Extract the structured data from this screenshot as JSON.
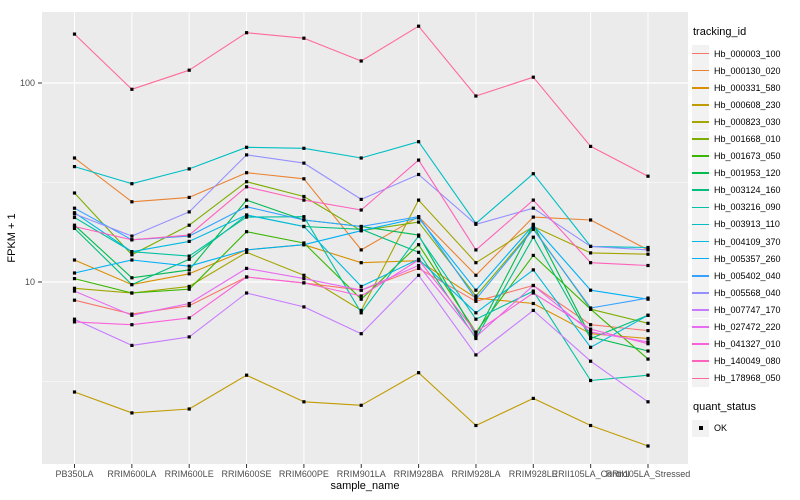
{
  "chart_data": {
    "type": "line",
    "title": "",
    "xlabel": "sample_name",
    "ylabel": "FPKM + 1",
    "y_scale": "log10",
    "y_ticks": [
      100,
      10
    ],
    "y_tick_labels": [
      "100",
      "10"
    ],
    "y_minor_ticks": [
      31.623,
      3.1623
    ],
    "ylim": [
      1.02,
      240
    ],
    "grid": "on",
    "legend_position": "right",
    "legend": {
      "color_title": "tracking_id",
      "shape_title": "quant_status",
      "shape_label": "OK"
    },
    "colors": {
      "panel_bg": "#EBEBEB",
      "grid": "#FFFFFF",
      "tick_label": "#4D4D4D",
      "axis_title": "#000000",
      "point": "#000000",
      "legend_key_bg": "#F2F2F2"
    },
    "categories": [
      "PB350LA",
      "RRIM600LA",
      "RRIM600LE",
      "RRIM600SE",
      "RRIM600PE",
      "RRIM901LA",
      "RRIM928BA",
      "RRIM928LA",
      "RRIM928LE",
      "RRII105LA_Control",
      "RRII105LA_Stressed"
    ],
    "series": [
      {
        "name": "Hb_000003_100",
        "color": "#F8766D",
        "values": [
          8.1,
          6.9,
          7.6,
          10.6,
          9.9,
          9.1,
          11.7,
          8.0,
          9.6,
          6.1,
          5.7
        ]
      },
      {
        "name": "Hb_000130_020",
        "color": "#EA8331",
        "values": [
          42,
          25.3,
          26.6,
          35.4,
          33,
          14.5,
          21.3,
          10.8,
          21.2,
          20.5,
          14.5
        ]
      },
      {
        "name": "Hb_000331_580",
        "color": "#D89000",
        "values": [
          12.9,
          9.7,
          11,
          14.5,
          15.4,
          12.5,
          12.8,
          8.3,
          7.8,
          5.5,
          5.2
        ]
      },
      {
        "name": "Hb_000608_230",
        "color": "#C09B00",
        "values": [
          2.8,
          2.2,
          2.3,
          3.4,
          2.5,
          2.4,
          3.5,
          1.9,
          2.6,
          1.9,
          1.5
        ]
      },
      {
        "name": "Hb_000823_030",
        "color": "#A3A500",
        "values": [
          9.3,
          8.8,
          9.5,
          14.1,
          10.8,
          7.2,
          25.8,
          12.5,
          19,
          14,
          13.8
        ]
      },
      {
        "name": "Hb_001668_010",
        "color": "#7CAE00",
        "values": [
          28,
          13.7,
          19.3,
          31.9,
          26.9,
          18.1,
          20,
          8.5,
          18.6,
          7.3,
          6.2
        ]
      },
      {
        "name": "Hb_001673_050",
        "color": "#39B600",
        "values": [
          10.4,
          8.8,
          9.2,
          17.9,
          15.7,
          8.2,
          15.4,
          5.6,
          13.6,
          7.3,
          4.1
        ]
      },
      {
        "name": "Hb_001953_120",
        "color": "#00BB4E",
        "values": [
          19.3,
          10.5,
          11.5,
          25.8,
          20.5,
          19,
          17.2,
          5.4,
          19.5,
          5.3,
          4.5
        ]
      },
      {
        "name": "Hb_003124_160",
        "color": "#00BF7D",
        "values": [
          18.6,
          9.7,
          13,
          21.7,
          19,
          18.4,
          14.1,
          5.2,
          16.8,
          5.2,
          6.8
        ]
      },
      {
        "name": "Hb_003216_090",
        "color": "#00C1A3",
        "values": [
          21.1,
          14.2,
          13.5,
          21.2,
          21.3,
          7,
          17,
          6.5,
          9,
          3.2,
          3.4
        ]
      },
      {
        "name": "Hb_003913_110",
        "color": "#00BFC4",
        "values": [
          38,
          31.2,
          37,
          47.5,
          47,
          42,
          50.7,
          19.7,
          35,
          15.1,
          14.9
        ]
      },
      {
        "name": "Hb_004109_370",
        "color": "#00BAE0",
        "values": [
          22.3,
          14.2,
          16,
          21.7,
          19,
          9.5,
          13,
          7,
          11.5,
          4.7,
          6.8
        ]
      },
      {
        "name": "Hb_005357_260",
        "color": "#00B0F6",
        "values": [
          11.1,
          12.9,
          12,
          14.5,
          15.4,
          18.1,
          21,
          9.1,
          19.3,
          9.1,
          8.2
        ]
      },
      {
        "name": "Hb_005402_040",
        "color": "#35A2FF",
        "values": [
          23.5,
          16.3,
          17,
          23.9,
          20.5,
          19,
          21.3,
          8.2,
          18.4,
          7.4,
          8.3
        ]
      },
      {
        "name": "Hb_005568_040",
        "color": "#9590FF",
        "values": [
          22,
          17,
          22.5,
          43.5,
          39.6,
          26,
          34.7,
          19.5,
          23.5,
          15.1,
          14.5
        ]
      },
      {
        "name": "Hb_007747_170",
        "color": "#C77CFF",
        "values": [
          6.5,
          4.8,
          5.3,
          8.8,
          7.5,
          5.5,
          10.8,
          4.3,
          7.2,
          4,
          2.5
        ]
      },
      {
        "name": "Hb_027472_220",
        "color": "#E76BF3",
        "values": [
          9,
          6.8,
          7.8,
          11.7,
          10.4,
          9.1,
          12.1,
          5.3,
          9.6,
          5.6,
          5
        ]
      },
      {
        "name": "Hb_041327_010",
        "color": "#FA62DB",
        "values": [
          6.3,
          6.1,
          6.6,
          10.6,
          9.9,
          8.5,
          12.9,
          5.6,
          8.8,
          5.8,
          4.9
        ]
      },
      {
        "name": "Hb_140049_080",
        "color": "#FF62BC",
        "values": [
          19,
          16.3,
          17.2,
          30.1,
          25.8,
          23,
          41,
          14.5,
          25.8,
          12.5,
          12.1
        ]
      },
      {
        "name": "Hb_178968_050",
        "color": "#FF6A98",
        "values": [
          176,
          93,
          116,
          179,
          168,
          129,
          193,
          86,
          107,
          48,
          34
        ]
      }
    ]
  }
}
